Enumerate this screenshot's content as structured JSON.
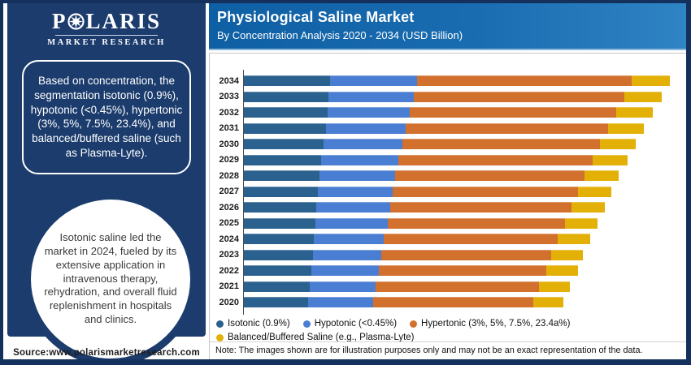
{
  "brand_navy": "#1b3c6d",
  "logo": {
    "text_before_star": "P",
    "text_after_star": "LARIS",
    "tagline": "MARKET RESEARCH"
  },
  "sidebar": {
    "box1": "Based on concentration, the segmentation isotonic (0.9%), hypotonic (<0.45%), hypertonic (3%, 5%, 7.5%, 23.4%), and balanced/buffered saline (such as Plasma-Lyte).",
    "circle": "Isotonic saline led the market in 2024, fueled by its extensive application in intravenous therapy, rehydration, and overall fluid replenishment in hospitals and clinics.",
    "source": "Source:www.polarismarketresearch.com"
  },
  "header": {
    "title": "Physiological Saline Market",
    "subtitle": "By Concentration Analysis 2020 - 2034 (USD Billion)"
  },
  "note": "Note: The images shown are for illustration purposes only and may not be an exact representation of the data.",
  "chart_data": {
    "type": "bar",
    "orientation": "horizontal",
    "stacked": true,
    "title": "Physiological Saline Market",
    "subtitle": "By Concentration Analysis 2020 - 2034 (USD Billion)",
    "unit": "USD Billion",
    "axis_max": 5.5,
    "grid": false,
    "legend_position": "bottom",
    "categories_top_to_bottom": [
      "2034",
      "2033",
      "2032",
      "2031",
      "2030",
      "2029",
      "2028",
      "2027",
      "2026",
      "2025",
      "2024",
      "2023",
      "2022",
      "2021",
      "2020"
    ],
    "series": [
      {
        "name": "Isotonic (0.9%)",
        "color": "#2a618f",
        "values": [
          1.09,
          1.07,
          1.05,
          1.03,
          1.0,
          0.97,
          0.95,
          0.93,
          0.91,
          0.9,
          0.88,
          0.87,
          0.85,
          0.83,
          0.81
        ]
      },
      {
        "name": "Hypotonic (<0.45%)",
        "color": "#4a7ed2",
        "values": [
          1.09,
          1.07,
          1.04,
          1.01,
          1.0,
          0.98,
          0.96,
          0.94,
          0.93,
          0.91,
          0.88,
          0.86,
          0.85,
          0.83,
          0.82
        ]
      },
      {
        "name": "Hypertonic (3%, 5%, 7.5%, 23.4a%)",
        "color": "#d2712e",
        "values": [
          2.71,
          2.65,
          2.6,
          2.55,
          2.49,
          2.44,
          2.38,
          2.34,
          2.29,
          2.24,
          2.19,
          2.14,
          2.11,
          2.06,
          2.02
        ]
      },
      {
        "name": "Balanced/Buffered Saline (e.g., Plasma-Lyte)",
        "color": "#e3b008",
        "values": [
          0.48,
          0.47,
          0.46,
          0.45,
          0.45,
          0.44,
          0.43,
          0.42,
          0.42,
          0.41,
          0.41,
          0.4,
          0.4,
          0.39,
          0.38
        ]
      }
    ]
  }
}
